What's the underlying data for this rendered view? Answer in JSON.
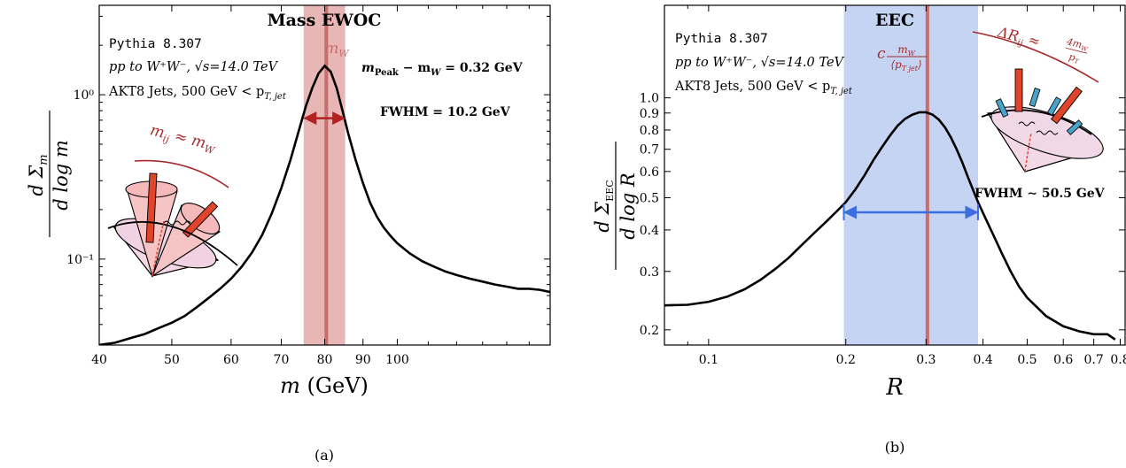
{
  "chart_data": [
    {
      "type": "line",
      "panel_label": "(a)",
      "title": "Mass EWOC",
      "xlabel": "m (GeV)",
      "ylabel": "d Σ_m / d log m",
      "xscale": "log",
      "yscale": "log",
      "xlim": [
        40,
        160
      ],
      "ylim": [
        0.03,
        3.5
      ],
      "xticks": [
        40,
        50,
        60,
        70,
        80,
        90,
        100
      ],
      "xticklabels": [
        "40",
        "50",
        "60",
        "70",
        "80",
        "90",
        "100"
      ],
      "yticks": [
        0.1,
        1
      ],
      "yticklabels": [
        "10⁻¹",
        "10⁰"
      ],
      "series": [
        {
          "x": [
            40,
            42,
            44,
            46,
            48,
            50,
            52,
            54,
            56,
            58,
            60,
            62,
            64,
            66,
            68,
            70,
            72,
            74,
            75.5,
            77,
            78.5,
            80,
            81.5,
            83,
            84.5,
            86,
            88,
            90,
            92,
            94,
            96,
            98,
            100,
            104,
            108,
            112,
            116,
            120,
            125,
            130,
            135,
            140,
            145,
            150,
            155,
            160
          ],
          "y": [
            0.03,
            0.031,
            0.033,
            0.035,
            0.038,
            0.041,
            0.045,
            0.051,
            0.058,
            0.066,
            0.076,
            0.09,
            0.11,
            0.14,
            0.19,
            0.27,
            0.4,
            0.62,
            0.85,
            1.1,
            1.35,
            1.5,
            1.38,
            1.1,
            0.8,
            0.58,
            0.4,
            0.29,
            0.22,
            0.18,
            0.155,
            0.138,
            0.125,
            0.108,
            0.097,
            0.09,
            0.084,
            0.08,
            0.076,
            0.073,
            0.07,
            0.068,
            0.066,
            0.066,
            0.065,
            0.063
          ]
        }
      ],
      "band": {
        "from": 75.0,
        "to": 85.2,
        "color": "#e8b7b5"
      },
      "peak_line": {
        "x": 80.4,
        "label": "m_W",
        "color": "#c76e6c"
      },
      "fwhm_arrow": {
        "from": 75.0,
        "to": 85.2,
        "y": 0.72,
        "color": "#b22222"
      },
      "curve_color": "#000000",
      "annotations": {
        "generator": "Pythia 8.307",
        "process": "pp to W⁺W⁻, √s=14.0 TeV",
        "jets": "AKT8 Jets, 500 GeV < p",
        "jets_sub": "T, jet",
        "peak_text": "m",
        "peak_sub": "Peak",
        "peak_text_2": " − m",
        "peak_sub_2": "W",
        "peak_value": " = 0.32 GeV",
        "fwhm_text": "FWHM = 10.2 GeV",
        "diagram_label": "m",
        "diagram_sub": "ij",
        "diagram_label_2": " ≈ m",
        "diagram_sub_2": "W",
        "mw_label": "m",
        "mw_sub": "W"
      }
    },
    {
      "type": "line",
      "panel_label": "(b)",
      "title": "EEC",
      "xlabel": "R",
      "ylabel": "d Σ_EEC / d log R",
      "xscale": "log",
      "yscale": "log",
      "xlim": [
        0.08,
        0.82
      ],
      "ylim": [
        0.18,
        1.9
      ],
      "xticks": [
        0.1,
        0.2,
        0.3,
        0.4,
        0.5,
        0.6,
        0.7,
        0.8
      ],
      "xticklabels": [
        "0.1",
        "0.2",
        "0.3",
        "0.4",
        "0.5",
        "0.6",
        "0.7",
        "0.8"
      ],
      "yticks": [
        0.2,
        0.3,
        0.4,
        0.5,
        0.6,
        0.7,
        0.8,
        0.9,
        1.0
      ],
      "yticklabels": [
        "0.2",
        "0.3",
        "0.4",
        "0.5",
        "0.6",
        "0.7",
        "0.8",
        "0.9",
        "1.0"
      ],
      "series": [
        {
          "x": [
            0.08,
            0.09,
            0.1,
            0.11,
            0.12,
            0.13,
            0.14,
            0.15,
            0.16,
            0.17,
            0.18,
            0.19,
            0.2,
            0.21,
            0.22,
            0.23,
            0.24,
            0.25,
            0.26,
            0.27,
            0.28,
            0.29,
            0.3,
            0.31,
            0.32,
            0.33,
            0.34,
            0.35,
            0.36,
            0.37,
            0.38,
            0.39,
            0.4,
            0.42,
            0.44,
            0.46,
            0.48,
            0.5,
            0.55,
            0.6,
            0.65,
            0.7,
            0.75,
            0.78
          ],
          "y": [
            0.237,
            0.238,
            0.243,
            0.252,
            0.265,
            0.283,
            0.305,
            0.33,
            0.36,
            0.39,
            0.42,
            0.452,
            0.485,
            0.53,
            0.585,
            0.65,
            0.71,
            0.77,
            0.825,
            0.865,
            0.89,
            0.905,
            0.905,
            0.89,
            0.86,
            0.815,
            0.76,
            0.7,
            0.64,
            0.58,
            0.53,
            0.485,
            0.45,
            0.39,
            0.34,
            0.3,
            0.27,
            0.25,
            0.22,
            0.205,
            0.198,
            0.194,
            0.194,
            0.187
          ]
        }
      ],
      "band": {
        "from": 0.198,
        "to": 0.39,
        "color": "#c6d4f4"
      },
      "peak_line": {
        "x": 0.302,
        "color": "#c76e6c"
      },
      "fwhm_arrow": {
        "from": 0.198,
        "to": 0.39,
        "y": 0.452,
        "color": "#3b6fe0"
      },
      "curve_color": "#000000",
      "annotations": {
        "generator": "Pythia 8.307",
        "process": "pp to W⁺W⁻, √s=14.0 TeV",
        "jets": "AKT8 Jets, 500 GeV < p",
        "jets_sub": "T, jet",
        "fwhm_text": "FWHM ∼ 50.5 GeV",
        "peak_label_c": "c",
        "peak_label_num": "m",
        "peak_label_num_sub": "W",
        "peak_label_den": "⟨p",
        "peak_label_den_sub": "T jet",
        "peak_label_den_close": "⟩",
        "diagram_label": "ΔR",
        "diagram_sub": "ij",
        "diagram_label_2": " ≈ ",
        "diagram_frac_num": "4m",
        "diagram_frac_num_sub": "W",
        "diagram_frac_den": "p",
        "diagram_frac_den_sub": "T"
      }
    }
  ],
  "colors": {
    "mass_band": "#e8b7b5",
    "mass_line": "#c76e6c",
    "eec_band": "#c6d4f4",
    "eec_arrow": "#3b6fe0",
    "dark_red": "#a52a2a",
    "diagram_red": "#e0442a",
    "diagram_blue": "#4aa3c8",
    "diagram_pink": "#f3c6cc"
  }
}
